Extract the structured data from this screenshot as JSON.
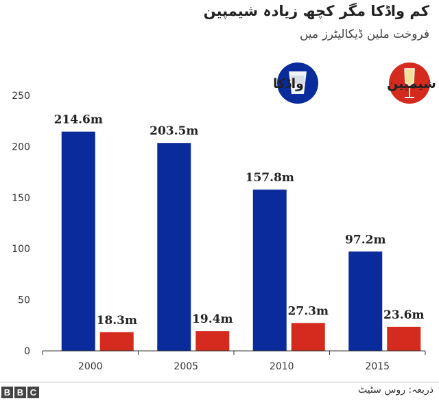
{
  "header": {
    "title": "کم واڈکا مگر کچھ زیادہ شیمپین",
    "subtitle": "فروخت ملین ڈیکالیٹرز میں"
  },
  "legend": {
    "vodka_label": "واڈکا",
    "champagne_label": "شیمپین",
    "vodka_icon": "vodka-glass-icon",
    "champagne_icon": "champagne-glass-icon"
  },
  "colors": {
    "vodka": "#0a2b9c",
    "champagne": "#d52b1e",
    "vodka_circle": "#0a2b9c",
    "champagne_circle": "#d52b1e"
  },
  "chart_data": {
    "type": "bar",
    "title": "کم واڈکا مگر کچھ زیادہ شیمپین",
    "subtitle": "فروخت ملین ڈیکالیٹرز میں",
    "xlabel": "",
    "ylabel": "",
    "categories": [
      "2000",
      "2005",
      "2010",
      "2015"
    ],
    "series": [
      {
        "name": "واڈکا",
        "values": [
          214.6,
          203.5,
          157.8,
          97.2
        ],
        "labels": [
          "214.6m",
          "203.5m",
          "157.8m",
          "97.2m"
        ]
      },
      {
        "name": "شیمپین",
        "values": [
          18.3,
          19.4,
          27.3,
          23.6
        ],
        "labels": [
          "18.3m",
          "19.4m",
          "27.3m",
          "23.6m"
        ]
      }
    ],
    "ylim": [
      0,
      250
    ],
    "yticks": [
      0,
      50,
      100,
      150,
      200,
      250
    ],
    "grid": false,
    "legend_position": "top-right"
  },
  "footer": {
    "brand": [
      "B",
      "B",
      "C"
    ],
    "source": "ذریعہ: روس سٹیٹ"
  }
}
